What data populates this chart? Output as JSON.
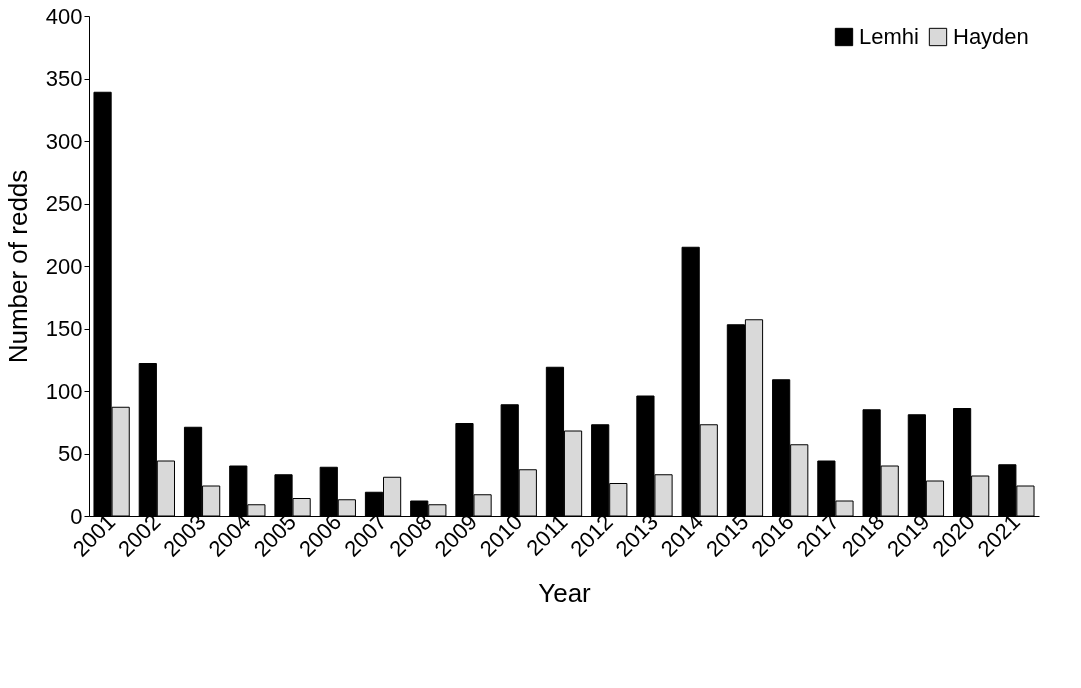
{
  "chart_data": {
    "type": "bar",
    "xlabel": "Year",
    "ylabel": "Number of redds",
    "categories": [
      "2001",
      "2002",
      "2003",
      "2004",
      "2005",
      "2006",
      "2007",
      "2008",
      "2009",
      "2010",
      "2011",
      "2012",
      "2013",
      "2014",
      "2015",
      "2016",
      "2017",
      "2018",
      "2019",
      "2020",
      "2021"
    ],
    "series": [
      {
        "name": "Lemhi",
        "color": "#000000",
        "values": [
          339,
          122,
          71,
          40,
          33,
          39,
          19,
          12,
          74,
          89,
          119,
          73,
          96,
          215,
          153,
          109,
          44,
          85,
          81,
          86,
          41
        ]
      },
      {
        "name": "Hayden",
        "color": "#d9d9d9",
        "values": [
          87,
          44,
          24,
          9,
          14,
          13,
          31,
          9,
          17,
          37,
          68,
          26,
          33,
          73,
          157,
          57,
          12,
          40,
          28,
          32,
          24
        ]
      }
    ],
    "ylim": [
      0,
      400
    ],
    "yticks": [
      0,
      50,
      100,
      150,
      200,
      250,
      300,
      350,
      400
    ],
    "grid": false,
    "legend": "top right"
  }
}
